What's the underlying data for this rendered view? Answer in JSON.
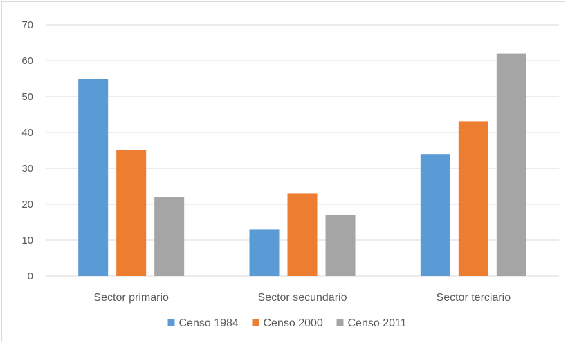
{
  "chart_data": {
    "type": "bar",
    "categories": [
      "Sector primario",
      "Sector secundario",
      "Sector terciario"
    ],
    "series": [
      {
        "name": "Censo 1984",
        "values": [
          55,
          13,
          34
        ],
        "color": "#5b9bd5"
      },
      {
        "name": "Censo 2000",
        "values": [
          35,
          23,
          43
        ],
        "color": "#ed7d31"
      },
      {
        "name": "Censo 2011",
        "values": [
          22,
          17,
          62
        ],
        "color": "#a5a5a5"
      }
    ],
    "title": "",
    "xlabel": "",
    "ylabel": "",
    "ylim": [
      0,
      70
    ],
    "yticks": [
      0,
      10,
      20,
      30,
      40,
      50,
      60,
      70
    ],
    "grid": true,
    "legend": "bottom"
  }
}
